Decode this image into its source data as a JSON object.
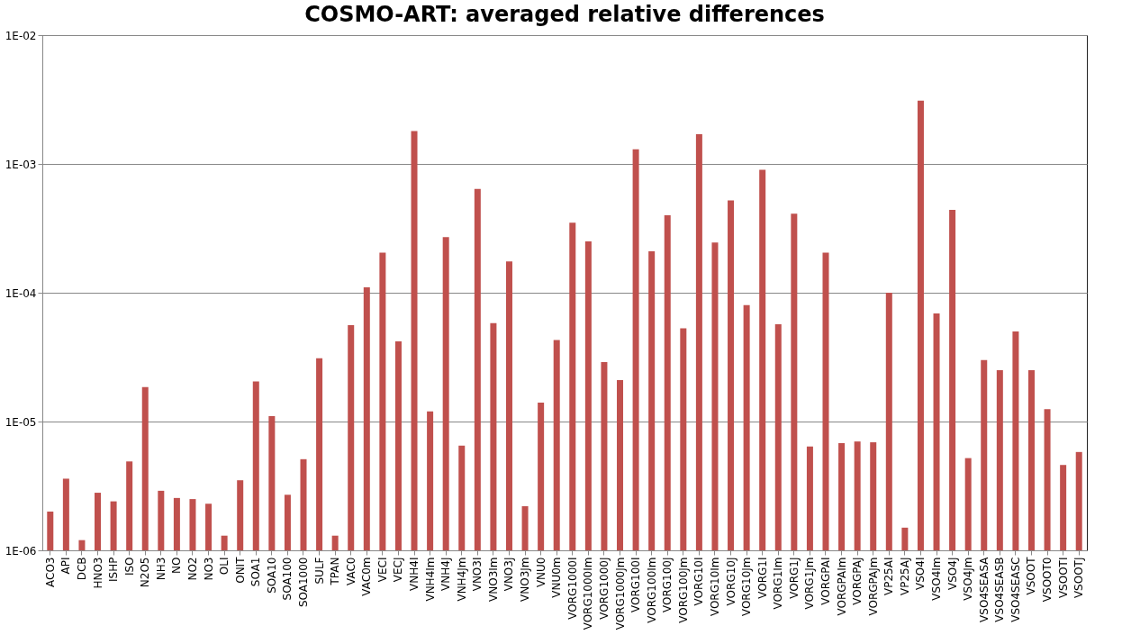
{
  "chart_data": {
    "type": "bar",
    "title": "COSMO-ART: averaged relative differences",
    "categories": [
      "ACO3",
      "API",
      "DCB",
      "HNO3",
      "ISHP",
      "ISO",
      "N2O5",
      "NH3",
      "NO",
      "NO2",
      "NO3",
      "OLI",
      "ONIT",
      "SOA1",
      "SOA10",
      "SOA100",
      "SOA1000",
      "SULF",
      "TPAN",
      "VAC0",
      "VAC0m",
      "VECI",
      "VECJ",
      "VNH4I",
      "VNH4Im",
      "VNH4J",
      "VNH4Jm",
      "VNO3I",
      "VNO3Im",
      "VNO3J",
      "VNO3Jm",
      "VNU0",
      "VNU0m",
      "VORG1000I",
      "VORG1000Im",
      "VORG1000J",
      "VORG1000Jm",
      "VORG100I",
      "VORG100Im",
      "VORG100J",
      "VORG100Jm",
      "VORG10I",
      "VORG10Im",
      "VORG10J",
      "VORG10Jm",
      "VORG1I",
      "VORG1Im",
      "VORG1J",
      "VORG1Jm",
      "VORGPAI",
      "VORGPAIm",
      "VORGPAJ",
      "VORGPAJm",
      "VP25AI",
      "VP25AJ",
      "VSO4I",
      "VSO4Im",
      "VSO4J",
      "VSO4Jm",
      "VSO4SEASA",
      "VSO4SEASB",
      "VSO4SEASC",
      "VSOOT",
      "VSOOT0",
      "VSOOTI",
      "VSOOTJ"
    ],
    "values": [
      2e-06,
      3.6e-06,
      1.2e-06,
      2.8e-06,
      2.4e-06,
      4.9e-06,
      1.85e-05,
      2.9e-06,
      2.55e-06,
      2.5e-06,
      2.3e-06,
      1.3e-06,
      3.5e-06,
      2.05e-05,
      1.1e-05,
      2.7e-06,
      5.1e-06,
      3.1e-05,
      1.3e-06,
      5.6e-05,
      0.00011,
      0.000205,
      4.2e-05,
      0.0018,
      1.2e-05,
      0.00027,
      6.5e-06,
      0.00064,
      5.8e-05,
      0.000175,
      2.2e-06,
      1.4e-05,
      4.3e-05,
      0.00035,
      0.00025,
      2.9e-05,
      2.1e-05,
      0.0013,
      0.00021,
      0.0004,
      5.3e-05,
      0.0017,
      0.000245,
      0.00052,
      8e-05,
      0.0009,
      5.7e-05,
      0.00041,
      6.4e-06,
      0.000205,
      6.8e-06,
      7e-06,
      6.9e-06,
      0.0001,
      1.5e-06,
      0.0031,
      6.9e-05,
      0.00044,
      5.2e-06,
      3e-05,
      2.5e-05,
      5e-05,
      2.5e-05,
      1.25e-05,
      4.6e-06,
      5.8e-06
    ],
    "color": "#c0504d",
    "log": true,
    "ylim": [
      1e-06,
      0.01
    ],
    "yticks": [
      {
        "value": 1e-06,
        "label": "1E-06"
      },
      {
        "value": 1e-05,
        "label": "1E-05"
      },
      {
        "value": 0.0001,
        "label": "1E-04"
      },
      {
        "value": 0.001,
        "label": "1E-03"
      },
      {
        "value": 0.01,
        "label": "1E-02"
      }
    ],
    "grid": "y"
  }
}
